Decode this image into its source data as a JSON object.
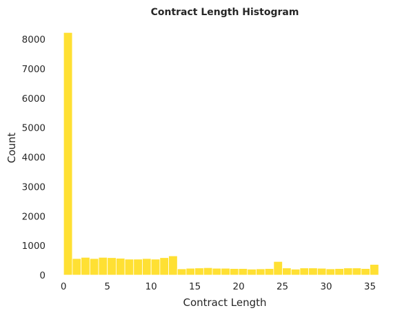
{
  "chart_data": {
    "type": "bar",
    "title": "Contract Length Histogram",
    "xlabel": "Contract Length",
    "ylabel": "Count",
    "bar_color": "#ffe033",
    "background": "#ffffff",
    "grid": false,
    "xlim": [
      -1.2,
      36.3
    ],
    "ylim": [
      0,
      8400
    ],
    "x_ticks": [
      0,
      5,
      10,
      15,
      20,
      25,
      30,
      35
    ],
    "y_ticks": [
      0,
      1000,
      2000,
      3000,
      4000,
      5000,
      6000,
      7000,
      8000
    ],
    "bin_width": 1,
    "x": [
      0,
      1,
      2,
      3,
      4,
      5,
      6,
      7,
      8,
      9,
      10,
      11,
      12,
      13,
      14,
      15,
      16,
      17,
      18,
      19,
      20,
      21,
      22,
      23,
      24,
      25,
      26,
      27,
      28,
      29,
      30,
      31,
      32,
      33,
      34,
      35
    ],
    "values": [
      8230,
      560,
      600,
      560,
      600,
      590,
      570,
      540,
      540,
      560,
      540,
      590,
      650,
      210,
      230,
      240,
      250,
      230,
      230,
      220,
      220,
      200,
      210,
      220,
      460,
      240,
      200,
      240,
      240,
      230,
      210,
      220,
      240,
      240,
      220,
      360
    ]
  }
}
